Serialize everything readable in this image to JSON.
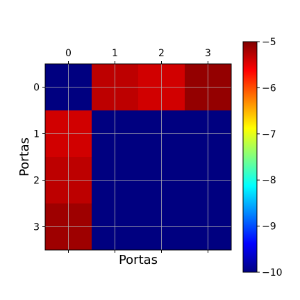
{
  "chart_data": {
    "type": "heatmap",
    "title": "",
    "xlabel": "Portas",
    "ylabel": "Portas",
    "x_ticks": [
      "0",
      "1",
      "2",
      "3"
    ],
    "y_ticks": [
      "0",
      "1",
      "2",
      "3"
    ],
    "x_tick_position": "top",
    "grid": true,
    "colormap": "jet",
    "vmin": -10,
    "vmax": -5,
    "colorbar_ticks": [
      -5,
      -6,
      -7,
      -8,
      -9,
      -10
    ],
    "colorbar_tick_labels": [
      "−5",
      "−6",
      "−7",
      "−8",
      "−9",
      "−10"
    ],
    "values": [
      [
        -10.0,
        -5.3,
        -5.4,
        -5.1
      ],
      [
        -5.4,
        -10.0,
        -10.0,
        -10.0
      ],
      [
        -5.3,
        -10.0,
        -10.0,
        -10.0
      ],
      [
        -5.15,
        -10.0,
        -10.0,
        -10.0
      ]
    ]
  }
}
